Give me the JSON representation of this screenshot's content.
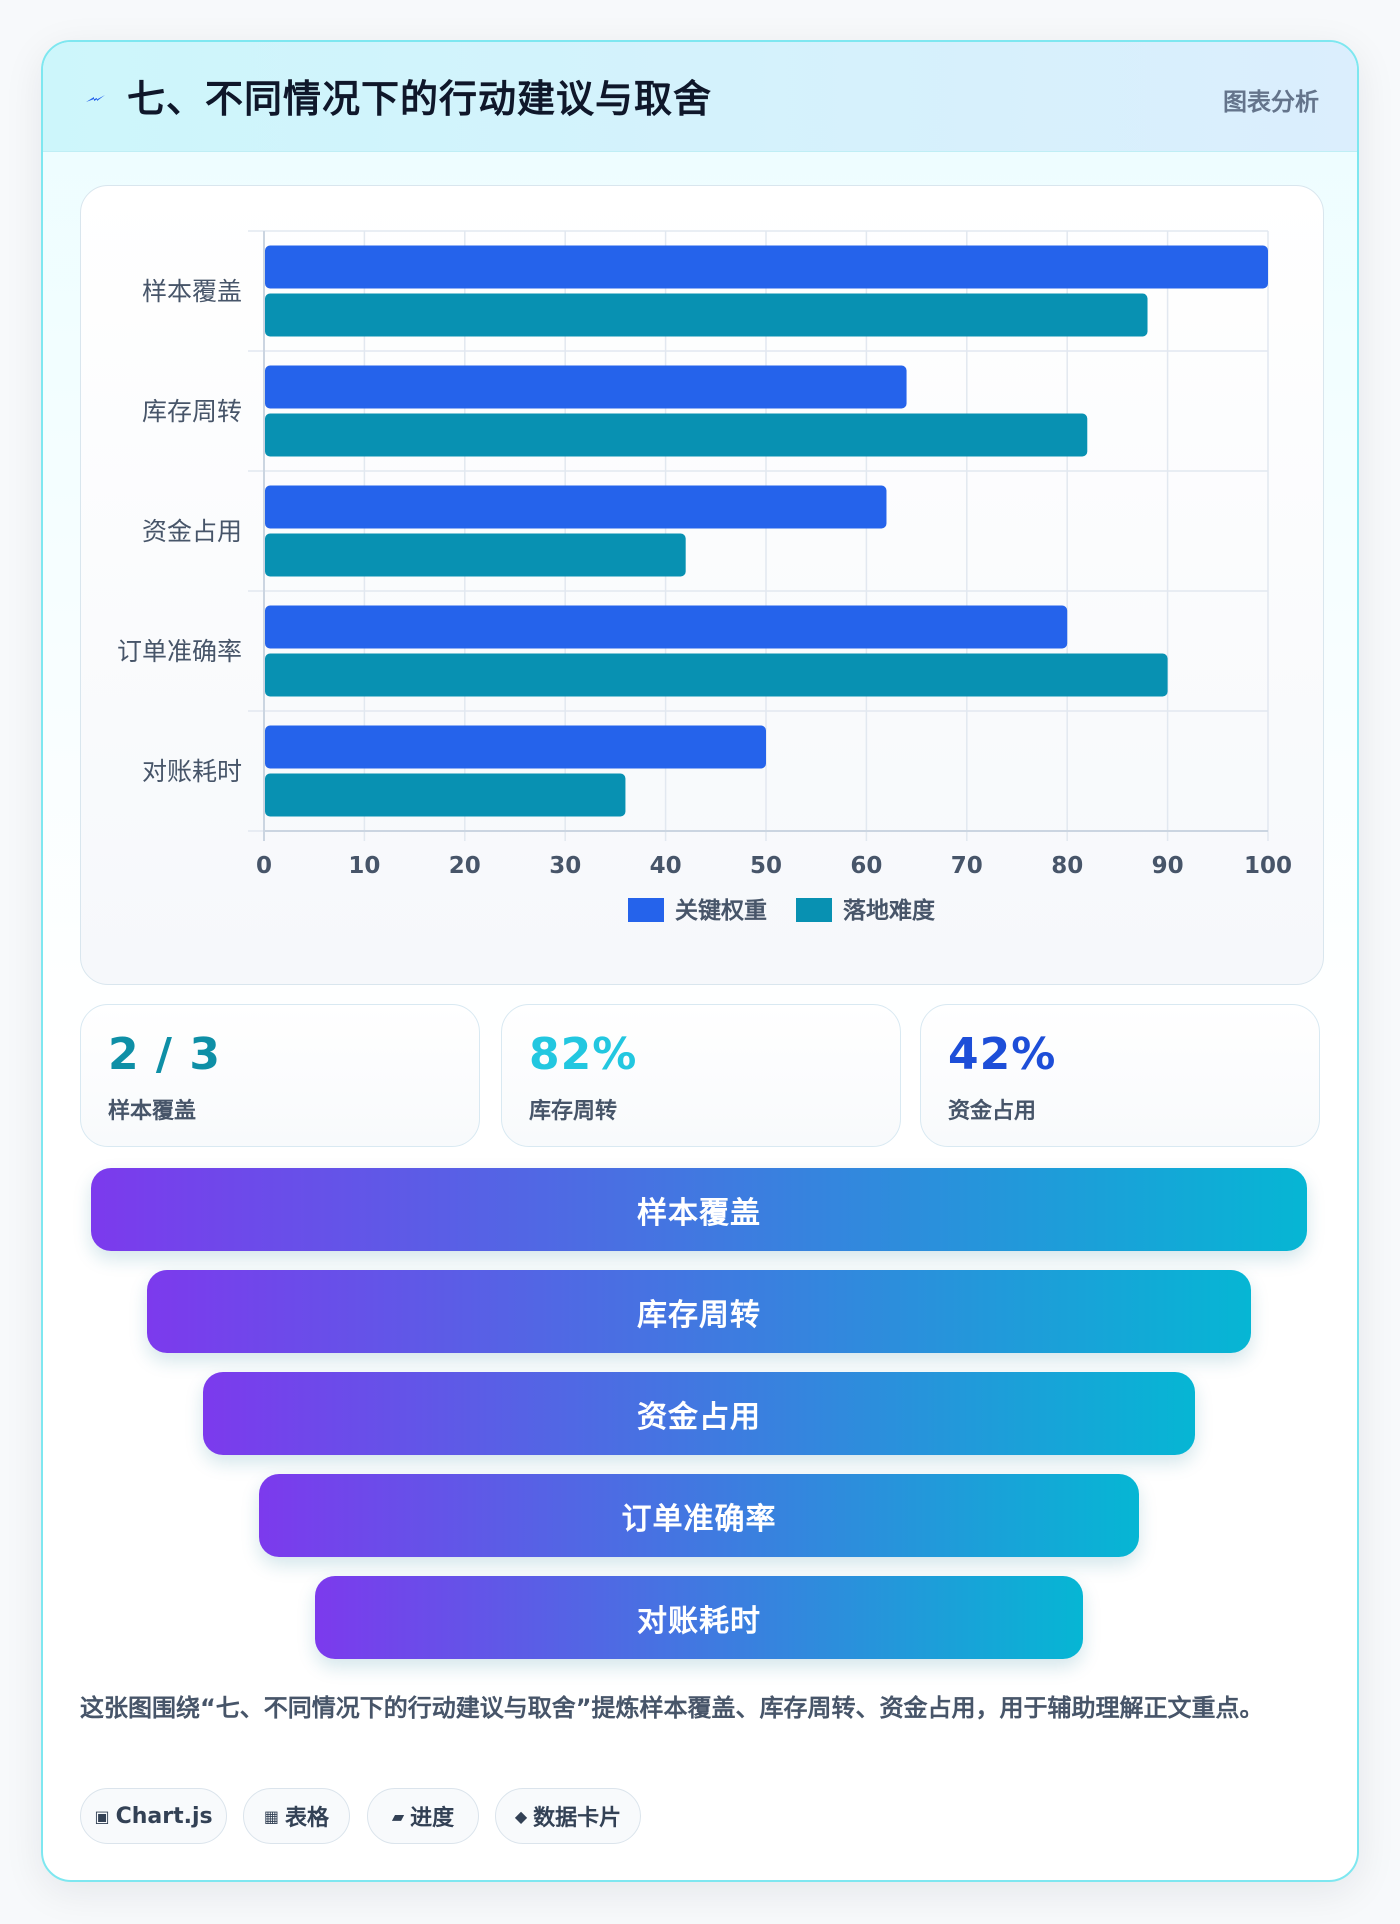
{
  "header": {
    "title": "七、不同情况下的行动建议与取舍",
    "badge": "图表分析",
    "icon": "lightning-icon"
  },
  "chart_data": {
    "type": "bar",
    "orientation": "horizontal",
    "categories": [
      "样本覆盖",
      "库存周转",
      "资金占用",
      "订单准确率",
      "对账耗时"
    ],
    "series": [
      {
        "name": "关键权重",
        "values": [
          100,
          64,
          62,
          80,
          50
        ],
        "color": "#2563eb"
      },
      {
        "name": "落地难度",
        "values": [
          88,
          82,
          42,
          90,
          36
        ],
        "color": "#0891b2"
      }
    ],
    "xlim": [
      0,
      100
    ],
    "ticks": [
      "0",
      "10",
      "20",
      "30",
      "40",
      "50",
      "60",
      "70",
      "80",
      "90",
      "100"
    ],
    "grid": true,
    "legend": "bottom"
  },
  "stats": [
    {
      "value": "2 / 3",
      "label": "样本覆盖",
      "color": "#0e8fa6"
    },
    {
      "value": "82%",
      "label": "库存周转",
      "color": "#22c7e0"
    },
    {
      "value": "42%",
      "label": "资金占用",
      "color": "#1d4ed8"
    }
  ],
  "funnel": [
    "样本覆盖",
    "库存周转",
    "资金占用",
    "订单准确率",
    "对账耗时"
  ],
  "summary": "这张图围绕“七、不同情况下的行动建议与取舍”提炼样本覆盖、库存周转、资金占用，用于辅助理解正文重点。",
  "tags": [
    {
      "icon": "chart-icon",
      "glyph": "▣",
      "label": "Chart.js"
    },
    {
      "icon": "table-icon",
      "glyph": "▦",
      "label": "表格"
    },
    {
      "icon": "progress-icon",
      "glyph": "▰",
      "label": "进度"
    },
    {
      "icon": "data-card-icon",
      "glyph": "◆",
      "label": "数据卡片"
    }
  ]
}
